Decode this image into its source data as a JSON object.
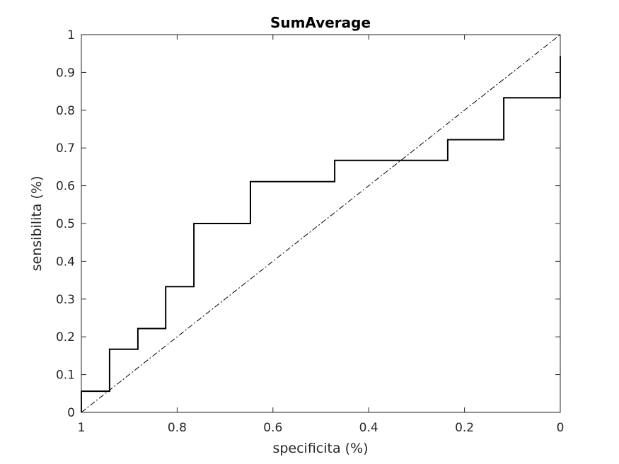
{
  "chart_data": {
    "type": "line",
    "title": "SumAverage",
    "xlabel": "specificita (%)",
    "ylabel": "sensibilita (%)",
    "xlim": [
      1,
      0
    ],
    "ylim": [
      0,
      1
    ],
    "x_reversed": true,
    "grid": false,
    "xticks": [
      {
        "value": 1,
        "label": "1"
      },
      {
        "value": 0.8,
        "label": "0.8"
      },
      {
        "value": 0.6,
        "label": "0.6"
      },
      {
        "value": 0.4,
        "label": "0.4"
      },
      {
        "value": 0.2,
        "label": "0.2"
      },
      {
        "value": 0,
        "label": "0"
      }
    ],
    "yticks": [
      {
        "value": 0,
        "label": "0"
      },
      {
        "value": 0.1,
        "label": "0.1"
      },
      {
        "value": 0.2,
        "label": "0.2"
      },
      {
        "value": 0.3,
        "label": "0.3"
      },
      {
        "value": 0.4,
        "label": "0.4"
      },
      {
        "value": 0.5,
        "label": "0.5"
      },
      {
        "value": 0.6,
        "label": "0.6"
      },
      {
        "value": 0.7,
        "label": "0.7"
      },
      {
        "value": 0.8,
        "label": "0.8"
      },
      {
        "value": 0.9,
        "label": "0.9"
      },
      {
        "value": 1,
        "label": "1"
      }
    ],
    "series": [
      {
        "style": "solid",
        "color": "#000000",
        "x": [
          1,
          1,
          0.941,
          0.941,
          0.882,
          0.882,
          0.824,
          0.824,
          0.765,
          0.765,
          0.647,
          0.647,
          0.471,
          0.471,
          0.235,
          0.235,
          0.118,
          0.118,
          0,
          0
        ],
        "y": [
          0,
          0.056,
          0.056,
          0.167,
          0.167,
          0.222,
          0.222,
          0.333,
          0.333,
          0.5,
          0.5,
          0.611,
          0.611,
          0.667,
          0.667,
          0.722,
          0.722,
          0.833,
          0.833,
          0.944
        ]
      },
      {
        "style": "dash-dot",
        "color": "#000000",
        "x": [
          1,
          0
        ],
        "y": [
          0,
          1
        ]
      }
    ]
  }
}
